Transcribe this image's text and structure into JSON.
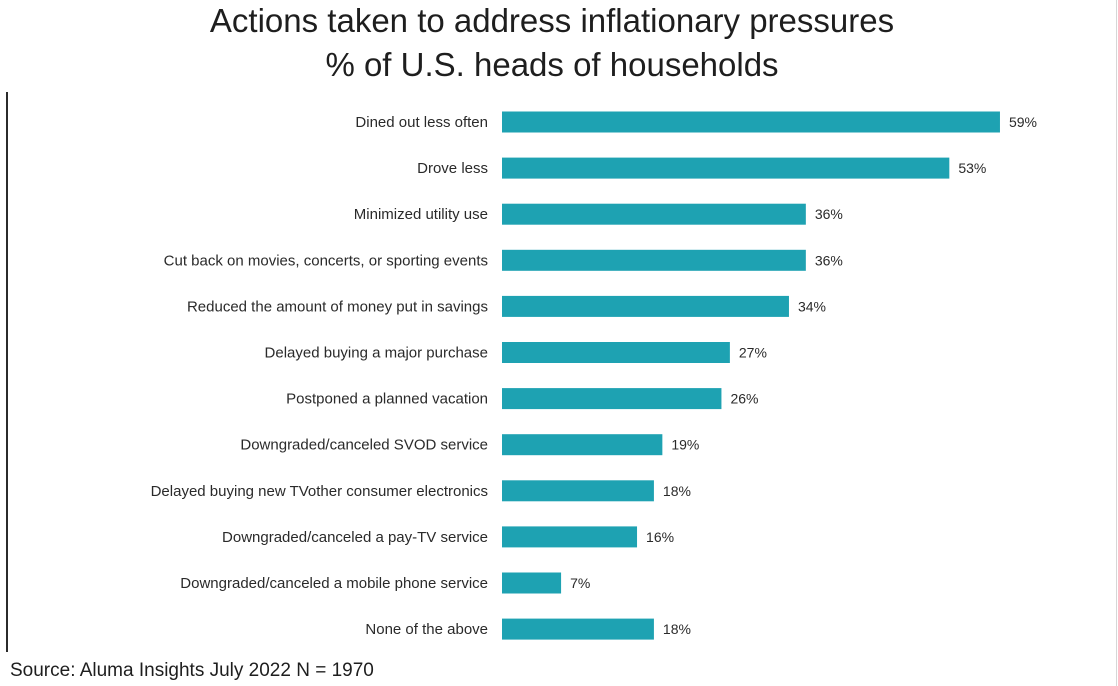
{
  "chart_data": {
    "type": "bar",
    "orientation": "horizontal",
    "title": "Actions taken to address inflationary pressures",
    "subtitle": "% of U.S. heads of households",
    "categories": [
      "Dined out less often",
      "Drove less",
      "Minimized utility use",
      "Cut back on movies, concerts, or sporting events",
      "Reduced the amount of money put in savings",
      "Delayed buying a major purchase",
      "Postponed a planned vacation",
      "Downgraded/canceled SVOD service",
      "Delayed buying new TVother consumer electronics",
      "Downgraded/canceled a pay-TV service",
      "Downgraded/canceled a mobile phone service",
      "None of the above"
    ],
    "values": [
      59,
      53,
      36,
      36,
      34,
      27,
      26,
      19,
      18,
      16,
      7,
      18
    ],
    "value_labels": [
      "59%",
      "53%",
      "36%",
      "36%",
      "34%",
      "27%",
      "26%",
      "19%",
      "18%",
      "16%",
      "7%",
      "18%"
    ],
    "xlim": [
      0,
      100
    ],
    "grid": false,
    "legend": "none",
    "bar_color": "#1ea2b2",
    "source": "Source: Aluma Insights July 2022   N = 1970"
  }
}
